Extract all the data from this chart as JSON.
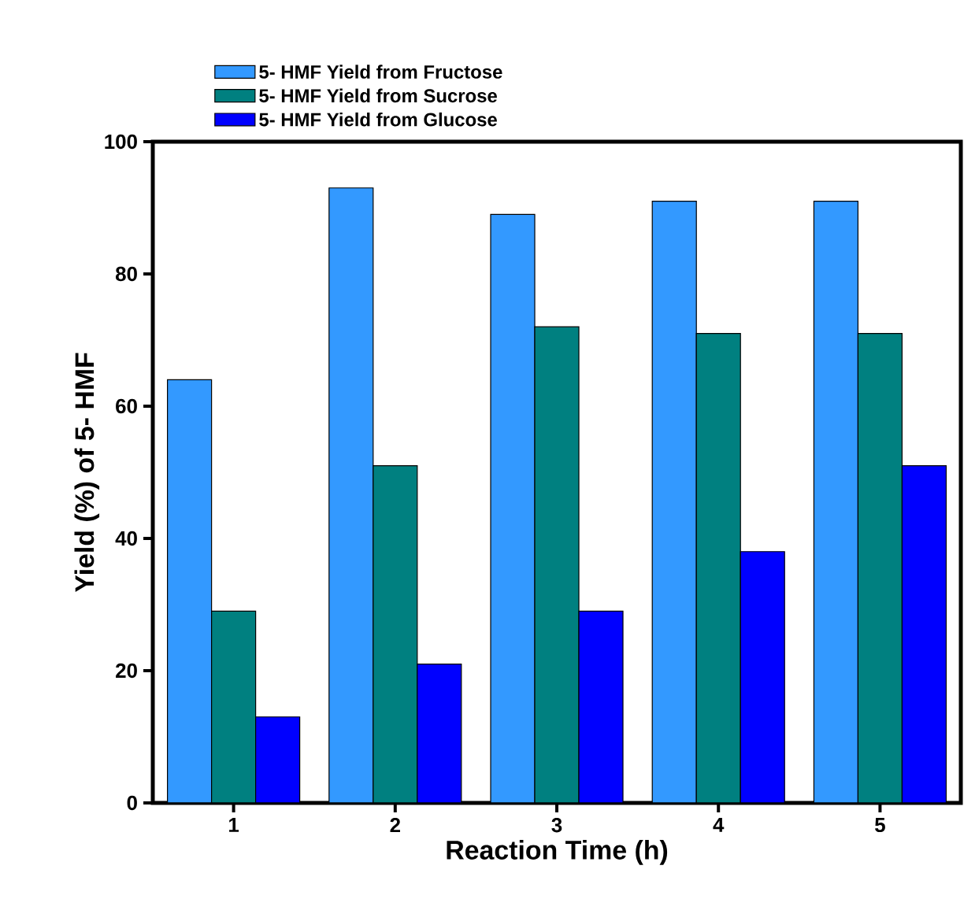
{
  "chart_data": {
    "type": "bar",
    "xlabel": "Reaction Time (h)",
    "ylabel": "Yield (%) of 5- HMF",
    "categories": [
      "1",
      "2",
      "3",
      "4",
      "5"
    ],
    "series": [
      {
        "name": "5- HMF Yield from Fructose",
        "color": "#3399ff",
        "values": [
          64,
          93,
          89,
          91,
          91
        ]
      },
      {
        "name": "5- HMF Yield from Sucrose",
        "color": "#008080",
        "values": [
          29,
          51,
          72,
          71,
          71
        ]
      },
      {
        "name": "5- HMF Yield from Glucose",
        "color": "#0000ff",
        "values": [
          13,
          21,
          29,
          38,
          51
        ]
      }
    ],
    "ylim": [
      0,
      100
    ],
    "yticks": [
      0,
      20,
      40,
      60,
      80,
      100
    ],
    "legend": "top left",
    "grid": false
  }
}
